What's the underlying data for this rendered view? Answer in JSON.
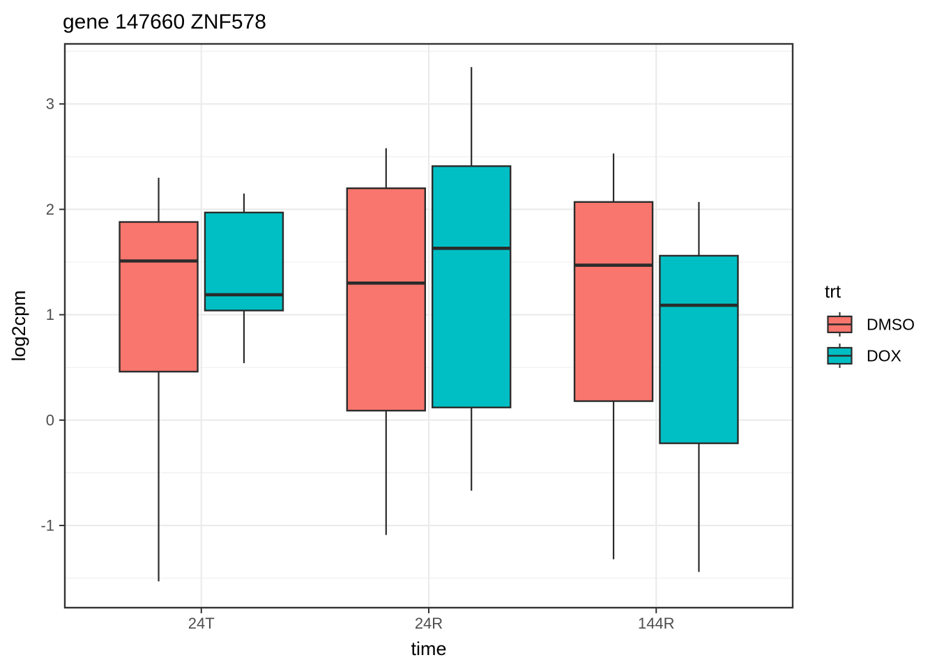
{
  "chart_data": {
    "type": "boxplot",
    "title": "gene 147660 ZNF578",
    "xlabel": "time",
    "ylabel": "log2cpm",
    "categories": [
      "24T",
      "24R",
      "144R"
    ],
    "axes": {
      "y_tick_labels": [
        "3",
        "2",
        "1",
        "0",
        "-1"
      ],
      "y_tick_values": [
        3,
        2,
        1,
        0,
        -1
      ],
      "y_minor_values": [
        3.5,
        2.5,
        1.5,
        0.5,
        -0.5,
        -1.5
      ],
      "ylim": [
        -1.78,
        3.57
      ],
      "grid": "major+minor-y, major-x"
    },
    "legend": {
      "title": "trt",
      "position": "right",
      "entries": [
        {
          "label": "DMSO",
          "color": "#F8766D"
        },
        {
          "label": "DOX",
          "color": "#00BFC4"
        }
      ]
    },
    "series": [
      {
        "name": "DMSO",
        "color": "#F8766D",
        "boxes": [
          {
            "category": "24T",
            "min": -1.53,
            "q1": 0.46,
            "median": 1.51,
            "q3": 1.88,
            "max": 2.3
          },
          {
            "category": "24R",
            "min": -1.09,
            "q1": 0.09,
            "median": 1.3,
            "q3": 2.2,
            "max": 2.58
          },
          {
            "category": "144R",
            "min": -1.32,
            "q1": 0.18,
            "median": 1.47,
            "q3": 2.07,
            "max": 2.53
          }
        ]
      },
      {
        "name": "DOX",
        "color": "#00BFC4",
        "boxes": [
          {
            "category": "24T",
            "min": 0.54,
            "q1": 1.04,
            "median": 1.19,
            "q3": 1.97,
            "max": 2.15
          },
          {
            "category": "24R",
            "min": -0.67,
            "q1": 0.12,
            "median": 1.63,
            "q3": 2.41,
            "max": 3.35
          },
          {
            "category": "144R",
            "min": -1.44,
            "q1": -0.22,
            "median": 1.09,
            "q3": 1.56,
            "max": 2.07
          }
        ]
      }
    ],
    "style": {
      "grid_major_color": "#EBEBEB",
      "grid_minor_color": "#F0F0F0",
      "panel_border_color": "#333333",
      "box_stroke_color": "#2B2B2B",
      "tick_mark_color": "#333333",
      "tick_label_color": "#4D4D4D",
      "text_color": "#000000",
      "background": "#FFFFFF"
    }
  }
}
